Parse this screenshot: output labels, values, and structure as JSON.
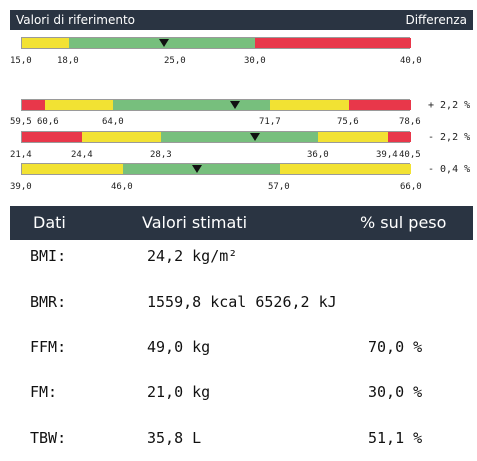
{
  "header": {
    "title": "Valori di riferimento",
    "right_label": "Differenza"
  },
  "colors": {
    "yellow": "#f2e233",
    "green": "#77bf7d",
    "red": "#e8374a",
    "header_bg": "#2a3442"
  },
  "ranges": [
    {
      "ticks": [
        "15,0",
        "18,0",
        "25,0",
        "30,0",
        "40,0"
      ],
      "difference": ""
    },
    {
      "ticks": [
        "59,5",
        "60,6",
        "64,0",
        "71,7",
        "75,6",
        "78,6"
      ],
      "difference": "+ 2,2 %"
    },
    {
      "ticks": [
        "21,4",
        "24,4",
        "28,3",
        "36,0",
        "39,4",
        "40,5"
      ],
      "difference": "- 2,2 %"
    },
    {
      "ticks": [
        "39,0",
        "46,0",
        "57,0",
        "66,0"
      ],
      "difference": "- 0,4 %"
    }
  ],
  "table": {
    "headers": [
      "Dati",
      "Valori stimati",
      "% sul peso"
    ],
    "rows": [
      {
        "label": "BMI:",
        "value": "24,2 kg/m²",
        "percent": ""
      },
      {
        "label": "BMR:",
        "value": "1559,8 kcal 6526,2 kJ",
        "percent": ""
      },
      {
        "label": "FFM:",
        "value": "49,0 kg",
        "percent": "70,0 %"
      },
      {
        "label": "FM:",
        "value": "21,0 kg",
        "percent": "30,0 %"
      },
      {
        "label": "TBW:",
        "value": "35,8 L",
        "percent": "51,1 %"
      }
    ]
  }
}
